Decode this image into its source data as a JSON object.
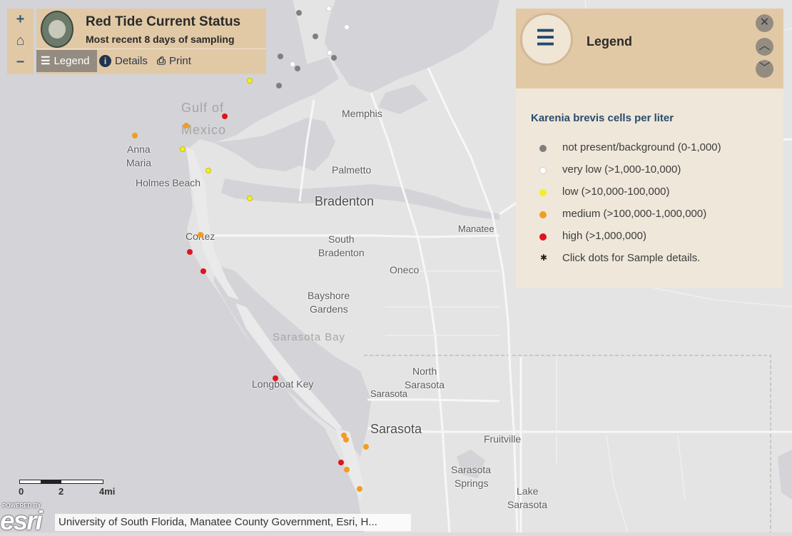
{
  "app": {
    "title": "Red Tide Current Status",
    "subtitle": "Most recent 8 days of sampling"
  },
  "zoom": {
    "in": "+",
    "home": "⌂",
    "out": "−"
  },
  "toolbar": {
    "legend": "Legend",
    "details": "Details",
    "print": "Print",
    "legend_icon": "list-icon",
    "details_icon": "info-icon",
    "print_icon": "printer-icon"
  },
  "legend": {
    "title": "Legend",
    "heading": "Karenia brevis cells per liter",
    "items": [
      {
        "label": "not present/background (0-1,000)",
        "color": "#7f7f7f"
      },
      {
        "label": "very low (>1,000-10,000)",
        "color": "#ffffff"
      },
      {
        "label": "low (>10,000-100,000)",
        "color": "#f4ee26"
      },
      {
        "label": "medium (>100,000-1,000,000)",
        "color": "#f29d1e"
      },
      {
        "label": "high (>1,000,000)",
        "color": "#e0141a"
      }
    ],
    "note": "Click dots for Sample details.",
    "note_symbol": "✱"
  },
  "map_labels": {
    "gulf": "Gulf of",
    "mexico": "Mexico",
    "memphis": "Memphis",
    "anna_maria_1": "Anna",
    "anna_maria_2": "Maria",
    "holmes_beach": "Holmes Beach",
    "palmetto": "Palmetto",
    "bradenton": "Bradenton",
    "cortez": "Cortez",
    "manatee": "Manatee",
    "south_bradenton_1": "South",
    "south_bradenton_2": "Bradenton",
    "oneco": "Oneco",
    "bayshore_1": "Bayshore",
    "bayshore_2": "Gardens",
    "sarasota_bay": "Sarasota Bay",
    "north_sarasota_1": "North",
    "north_sarasota_2": "Sarasota",
    "longboat_key": "Longboat Key",
    "sarasota_small": "Sarasota",
    "sarasota": "Sarasota",
    "fruitville": "Fruitville",
    "sarasota_springs_1": "Sarasota",
    "sarasota_springs_2": "Springs",
    "lake_sarasota_1": "Lake",
    "lake_sarasota_2": "Sarasota"
  },
  "scale": {
    "left": "0",
    "mid": "2",
    "right": "4mi"
  },
  "esri": {
    "powered": "POWERED BY",
    "logo": "esri"
  },
  "attribution": "University of South Florida, Manatee County Government, Esri, H..."
}
